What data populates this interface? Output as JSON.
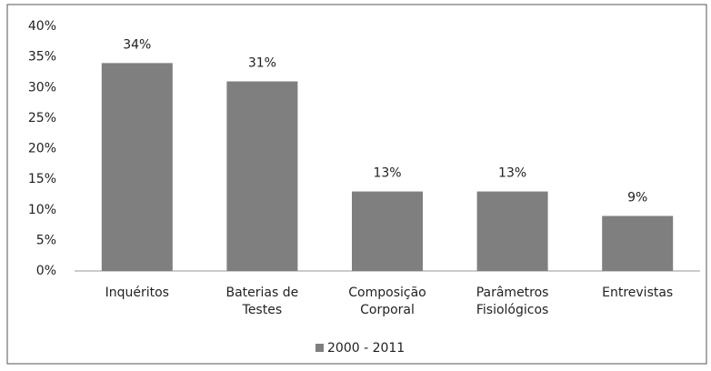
{
  "chart_data": {
    "type": "bar",
    "categories": [
      "Inquéritos",
      "Baterias de Testes",
      "Composição Corporal",
      "Parâmetros Fisiológicos",
      "Entrevistas"
    ],
    "series": [
      {
        "name": "2000 - 2011",
        "color": "#7f7f7f",
        "values": [
          34,
          31,
          13,
          13,
          9
        ],
        "value_labels": [
          "34%",
          "31%",
          "13%",
          "13%",
          "9%"
        ]
      }
    ],
    "ylim": [
      0,
      40
    ],
    "yticks": [
      {
        "value": 0,
        "label": "0%"
      },
      {
        "value": 5,
        "label": "5%"
      },
      {
        "value": 10,
        "label": "10%"
      },
      {
        "value": 15,
        "label": "15%"
      },
      {
        "value": 20,
        "label": "20%"
      },
      {
        "value": 25,
        "label": "25%"
      },
      {
        "value": 30,
        "label": "30%"
      },
      {
        "value": 35,
        "label": "35%"
      },
      {
        "value": 40,
        "label": "40%"
      }
    ],
    "grid": false,
    "legend": "bottom"
  }
}
